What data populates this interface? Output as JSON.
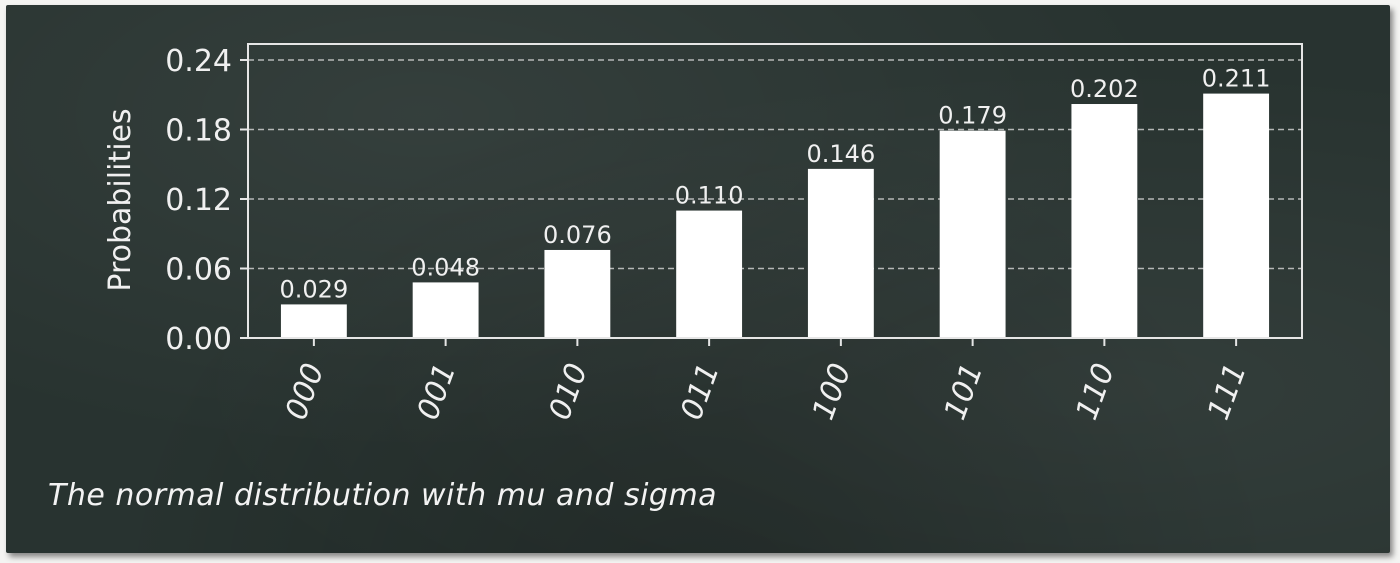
{
  "caption": "The normal distribution with mu and sigma",
  "colors": {
    "board": "#283330",
    "bar": "#ffffff",
    "text": "#f0f0f0",
    "grid": "#d8d8d8"
  },
  "chart_data": {
    "type": "bar",
    "categories": [
      "000",
      "001",
      "010",
      "011",
      "100",
      "101",
      "110",
      "111"
    ],
    "values": [
      0.029,
      0.048,
      0.076,
      0.11,
      0.146,
      0.179,
      0.202,
      0.211
    ],
    "data_labels": [
      "0.029",
      "0.048",
      "0.076",
      "0.110",
      "0.146",
      "0.179",
      "0.202",
      "0.211"
    ],
    "ylabel": "Probabilities",
    "xlabel": "",
    "ylim": [
      0,
      0.24
    ],
    "yticks": [
      0.0,
      0.06,
      0.12,
      0.18,
      0.24
    ],
    "ytick_labels": [
      "0.00",
      "0.06",
      "0.12",
      "0.18",
      "0.24"
    ],
    "grid": "horizontal dashed",
    "x_tick_rotation": "70 degrees"
  }
}
